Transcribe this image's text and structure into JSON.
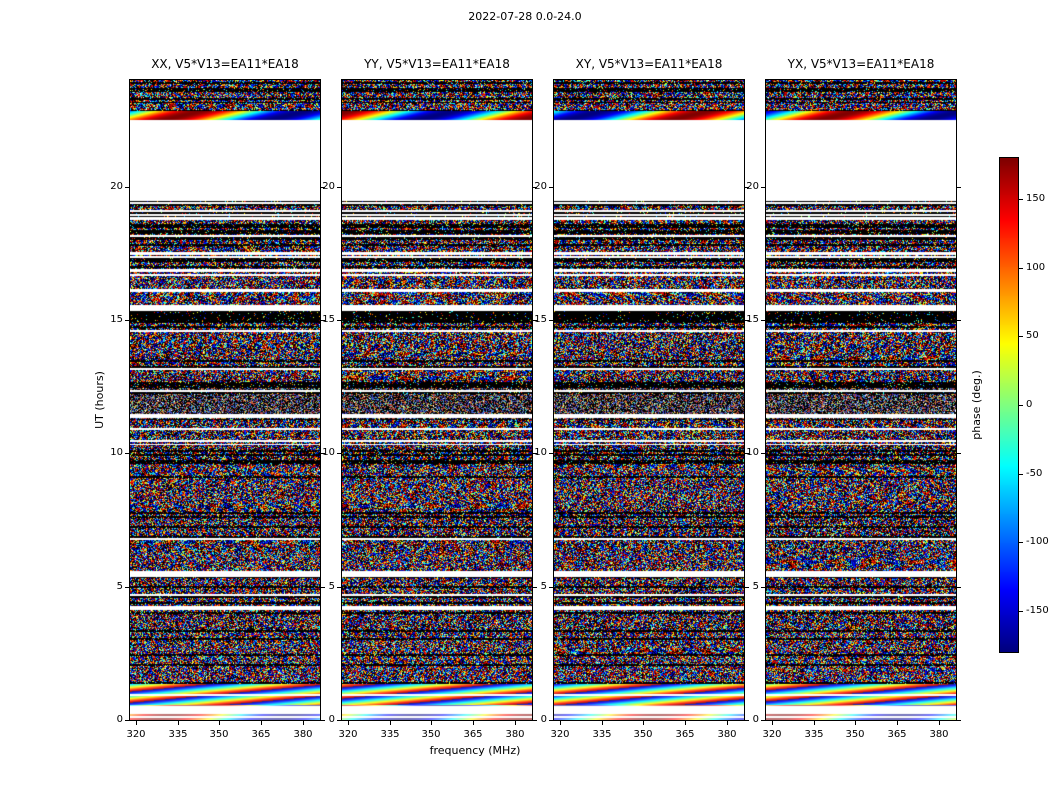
{
  "figure": {
    "title": "2022-07-28 0.0-24.0"
  },
  "chart_data": {
    "type": "heatmap",
    "title": "2022-07-28 0.0-24.0",
    "quantity": "interferometric visibility phase per baseline polarization product, vs frequency and time",
    "panels": [
      {
        "title": "XX, V5*V13=EA11*EA18"
      },
      {
        "title": "YY, V5*V13=EA11*EA18"
      },
      {
        "title": "XY, V5*V13=EA11*EA18"
      },
      {
        "title": "YX, V5*V13=EA11*EA18"
      }
    ],
    "xlabel": "frequency (MHz)",
    "ylabel": "UT (hours)",
    "xlim": [
      318,
      386
    ],
    "ylim": [
      0,
      24
    ],
    "xticks": [
      320,
      335,
      350,
      365,
      380
    ],
    "yticks": [
      0,
      5,
      10,
      15,
      20
    ],
    "grid": false,
    "colorbar": {
      "label": "phase (deg.)",
      "ticks": [
        150,
        100,
        50,
        0,
        -50,
        -100,
        -150
      ],
      "vmin": -180,
      "vmax": 180,
      "colormap": "jet"
    },
    "time_bands": [
      {
        "t_start": 0.0,
        "t_end": 0.55,
        "type": "smooth_light"
      },
      {
        "t_start": 0.55,
        "t_end": 1.35,
        "type": "fringes"
      },
      {
        "t_start": 1.35,
        "t_end": 2.3,
        "type": "noise",
        "black_row_fraction": 0.18,
        "white_row_fraction": 0.08,
        "speckle": 0.22
      },
      {
        "t_start": 2.3,
        "t_end": 3.3,
        "type": "noise",
        "black_row_fraction": 0.15,
        "white_row_fraction": 0.06,
        "speckle": 0.25
      },
      {
        "t_start": 3.3,
        "t_end": 4.3,
        "type": "noise",
        "black_row_fraction": 0.28,
        "white_row_fraction": 0.06,
        "speckle": 0.3
      },
      {
        "t_start": 4.3,
        "t_end": 5.35,
        "type": "noise",
        "black_row_fraction": 0.2,
        "white_row_fraction": 0.07,
        "speckle": 0.28
      },
      {
        "t_start": 5.35,
        "t_end": 5.6,
        "type": "white"
      },
      {
        "t_start": 5.6,
        "t_end": 6.3,
        "type": "noise",
        "black_row_fraction": 0.2,
        "white_row_fraction": 0.1,
        "speckle": 0.25
      },
      {
        "t_start": 6.3,
        "t_end": 8.0,
        "type": "noise",
        "black_row_fraction": 0.14,
        "white_row_fraction": 0.04,
        "speckle": 0.3
      },
      {
        "t_start": 8.0,
        "t_end": 9.55,
        "type": "noise",
        "black_row_fraction": 0.12,
        "white_row_fraction": 0.05,
        "speckle": 0.25
      },
      {
        "t_start": 9.55,
        "t_end": 10.3,
        "type": "noise",
        "black_row_fraction": 0.45,
        "white_row_fraction": 0.04,
        "speckle": 0.35
      },
      {
        "t_start": 10.3,
        "t_end": 11.3,
        "type": "noise",
        "black_row_fraction": 0.25,
        "white_row_fraction": 0.06,
        "speckle": 0.3
      },
      {
        "t_start": 11.3,
        "t_end": 12.45,
        "type": "noise",
        "black_row_fraction": 0.1,
        "white_row_fraction": 0.05,
        "speckle": 0.45,
        "desaturated": true
      },
      {
        "t_start": 12.45,
        "t_end": 12.75,
        "type": "noise",
        "black_row_fraction": 0.6,
        "white_row_fraction": 0.05,
        "speckle": 0.35
      },
      {
        "t_start": 12.75,
        "t_end": 14.9,
        "type": "noise",
        "black_row_fraction": 0.16,
        "white_row_fraction": 0.05,
        "speckle": 0.28
      },
      {
        "t_start": 14.9,
        "t_end": 15.35,
        "type": "black"
      },
      {
        "t_start": 15.35,
        "t_end": 15.55,
        "type": "white"
      },
      {
        "t_start": 15.55,
        "t_end": 16.05,
        "type": "noise",
        "black_row_fraction": 0.15,
        "white_row_fraction": 0.08,
        "speckle": 0.25
      },
      {
        "t_start": 16.05,
        "t_end": 16.15,
        "type": "white"
      },
      {
        "t_start": 16.15,
        "t_end": 16.8,
        "type": "noise",
        "black_row_fraction": 0.2,
        "white_row_fraction": 0.08,
        "speckle": 0.25
      },
      {
        "t_start": 16.8,
        "t_end": 16.9,
        "type": "white"
      },
      {
        "t_start": 16.9,
        "t_end": 17.45,
        "type": "noise",
        "black_row_fraction": 0.35,
        "white_row_fraction": 0.06,
        "speckle": 0.3
      },
      {
        "t_start": 17.45,
        "t_end": 17.55,
        "type": "white"
      },
      {
        "t_start": 17.55,
        "t_end": 18.1,
        "type": "noise",
        "black_row_fraction": 0.4,
        "white_row_fraction": 0.05,
        "speckle": 0.3
      },
      {
        "t_start": 18.1,
        "t_end": 18.2,
        "type": "white"
      },
      {
        "t_start": 18.2,
        "t_end": 18.75,
        "type": "noise",
        "black_row_fraction": 0.45,
        "white_row_fraction": 0.04,
        "speckle": 0.3
      },
      {
        "t_start": 18.75,
        "t_end": 18.85,
        "type": "white"
      },
      {
        "t_start": 18.85,
        "t_end": 19.45,
        "type": "noise",
        "black_row_fraction": 0.45,
        "white_row_fraction": 0.04,
        "speckle": 0.3
      },
      {
        "t_start": 19.45,
        "t_end": 22.5,
        "type": "white"
      },
      {
        "t_start": 22.5,
        "t_end": 22.85,
        "type": "smooth"
      },
      {
        "t_start": 22.85,
        "t_end": 23.15,
        "type": "noise",
        "black_row_fraction": 0.15,
        "white_row_fraction": 0.05,
        "speckle": 0.22
      },
      {
        "t_start": 23.15,
        "t_end": 24.01,
        "type": "noise",
        "black_row_fraction": 0.3,
        "white_row_fraction": 0.05,
        "speckle": 0.25
      }
    ]
  }
}
